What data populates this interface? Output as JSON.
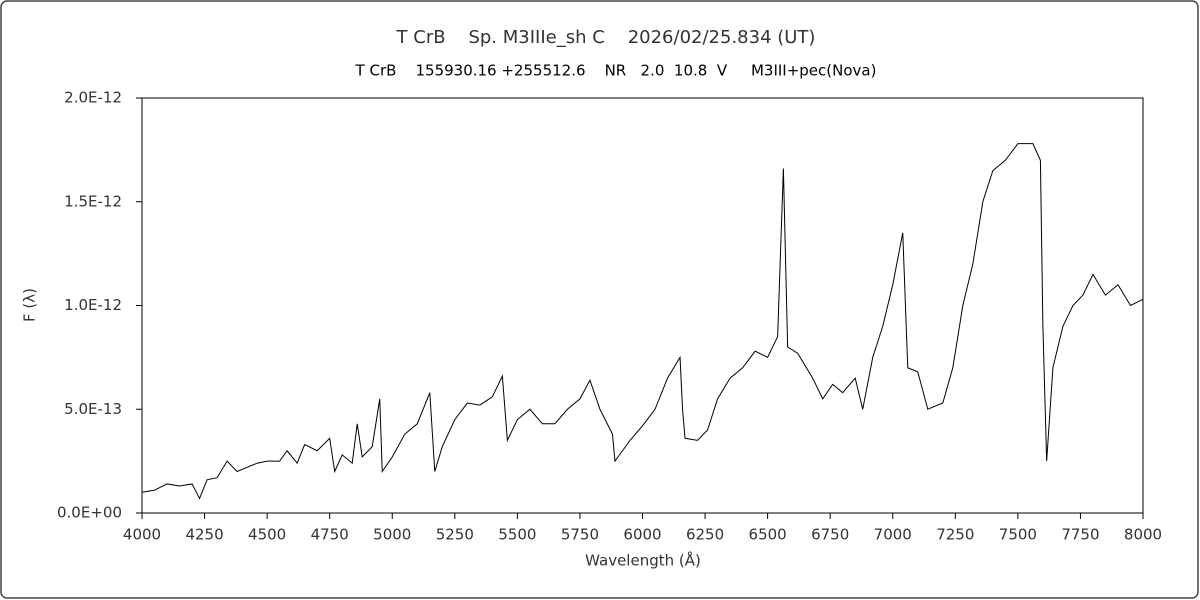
{
  "chart_data": {
    "type": "line",
    "title": "T CrB    Sp. M3IIIe_sh C    2026/02/25.834 (UT)",
    "subtitle": "T CrB    155930.16 +255512.6    NR   2.0  10.8  V     M3III+pec(Nova)",
    "x_label": "Wavelength (Å)",
    "y_label": "F (λ)",
    "xlim": [
      4000,
      8000
    ],
    "xticks": [
      4000,
      4250,
      4500,
      4750,
      5000,
      5250,
      5500,
      5750,
      6000,
      6250,
      6500,
      6750,
      7000,
      7250,
      7500,
      7750,
      8000
    ],
    "ylim": [
      0,
      2e-12
    ],
    "yticks": [
      {
        "value": 0,
        "label": "0.0E+00"
      },
      {
        "value": 5e-13,
        "label": "5.0E-13"
      },
      {
        "value": 1e-12,
        "label": "1.0E-12"
      },
      {
        "value": 1.5e-12,
        "label": "1.5E-12"
      },
      {
        "value": 2e-12,
        "label": "2.0E-12"
      }
    ],
    "x": [
      4000,
      4050,
      4100,
      4150,
      4200,
      4230,
      4260,
      4300,
      4340,
      4380,
      4420,
      4460,
      4500,
      4550,
      4580,
      4620,
      4650,
      4700,
      4750,
      4770,
      4800,
      4840,
      4860,
      4880,
      4920,
      4950,
      4960,
      5000,
      5050,
      5100,
      5150,
      5170,
      5200,
      5250,
      5300,
      5350,
      5400,
      5440,
      5460,
      5500,
      5550,
      5600,
      5650,
      5700,
      5750,
      5790,
      5830,
      5880,
      5890,
      5950,
      6000,
      6050,
      6100,
      6150,
      6160,
      6170,
      6220,
      6260,
      6300,
      6350,
      6400,
      6450,
      6500,
      6540,
      6563,
      6580,
      6620,
      6680,
      6720,
      6760,
      6800,
      6850,
      6880,
      6920,
      6960,
      7000,
      7040,
      7060,
      7100,
      7140,
      7200,
      7240,
      7280,
      7320,
      7360,
      7400,
      7450,
      7500,
      7560,
      7590,
      7600,
      7615,
      7640,
      7680,
      7720,
      7760,
      7800,
      7850,
      7900,
      7950,
      8000
    ],
    "series": [
      {
        "color": "#000000",
        "values": [
          1e-13,
          1.1e-13,
          1.4e-13,
          1.3e-13,
          1.4e-13,
          7e-14,
          1.6e-13,
          1.7e-13,
          2.5e-13,
          2e-13,
          2.2e-13,
          2.4e-13,
          2.5e-13,
          2.5e-13,
          3e-13,
          2.4e-13,
          3.3e-13,
          3e-13,
          3.6e-13,
          2e-13,
          2.8e-13,
          2.4e-13,
          4.3e-13,
          2.7e-13,
          3.2e-13,
          5.5e-13,
          2e-13,
          2.7e-13,
          3.8e-13,
          4.3e-13,
          5.8e-13,
          2e-13,
          3.2e-13,
          4.5e-13,
          5.3e-13,
          5.2e-13,
          5.6e-13,
          6.6e-13,
          3.5e-13,
          4.5e-13,
          5e-13,
          4.3e-13,
          4.3e-13,
          5e-13,
          5.5e-13,
          6.4e-13,
          5e-13,
          3.8e-13,
          2.5e-13,
          3.5e-13,
          4.2e-13,
          5e-13,
          6.5e-13,
          7.5e-13,
          5e-13,
          3.6e-13,
          3.5e-13,
          4e-13,
          5.5e-13,
          6.5e-13,
          7e-13,
          7.8e-13,
          7.5e-13,
          8.5e-13,
          1.66e-12,
          8e-13,
          7.7e-13,
          6.5e-13,
          5.5e-13,
          6.2e-13,
          5.8e-13,
          6.5e-13,
          5e-13,
          7.5e-13,
          9e-13,
          1.1e-12,
          1.35e-12,
          7e-13,
          6.8e-13,
          5e-13,
          5.3e-13,
          7e-13,
          1e-12,
          1.2e-12,
          1.5e-12,
          1.65e-12,
          1.7e-12,
          1.78e-12,
          1.78e-12,
          1.7e-12,
          9e-13,
          2.5e-13,
          7e-13,
          9e-13,
          1e-12,
          1.05e-12,
          1.15e-12,
          1.05e-12,
          1.1e-12,
          1e-12,
          1.03e-12
        ]
      }
    ]
  }
}
